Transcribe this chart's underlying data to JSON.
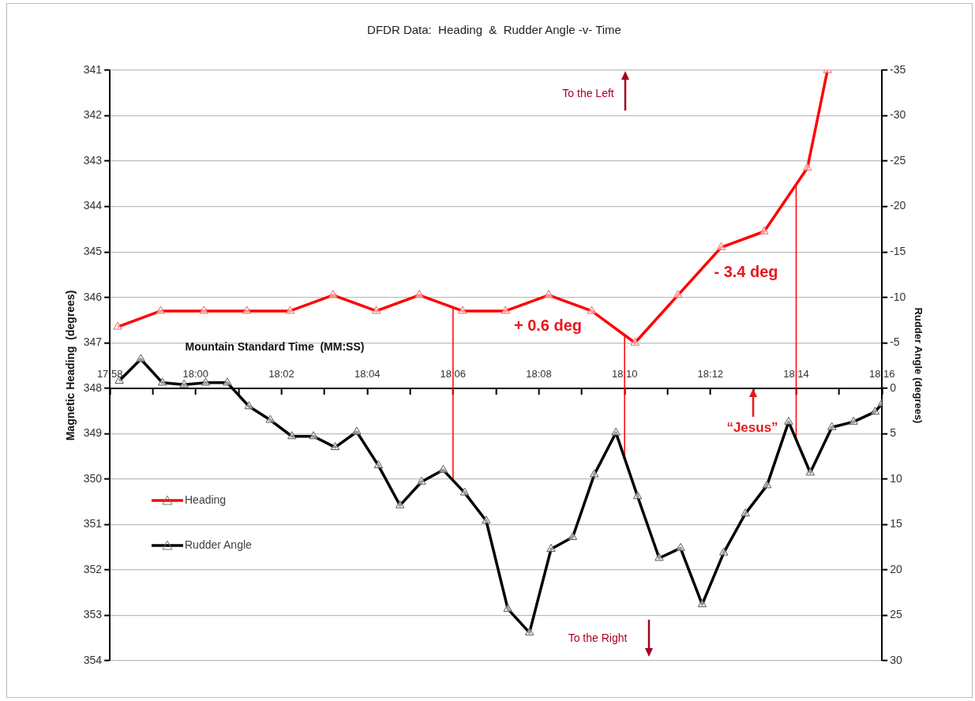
{
  "chart_data": {
    "type": "line",
    "title": "DFDR Data:  Heading  &  Rudder Angle -v- Time",
    "xlabel": "Mountain Standard Time  (MM:SS)",
    "ylabel": "Magnetic Heading  (degrees)",
    "y2label": "Rudder Angle (degrees)",
    "series": [
      {
        "name": "Heading",
        "color": "#ff0000",
        "axis": "y",
        "x": [
          17.9697,
          17.9864,
          18.0032,
          18.0199,
          18.0367,
          18.0534,
          18.0702,
          18.0869,
          18.1037,
          18.1204,
          18.1372,
          18.1539,
          18.1707,
          18.1874,
          18.2042,
          18.2209,
          18.2377,
          18.2455
        ],
        "values": [
          346.65,
          346.3,
          346.3,
          346.3,
          346.3,
          345.95,
          346.3,
          345.95,
          346.3,
          346.3,
          345.95,
          346.3,
          347.0,
          345.95,
          344.9,
          344.55,
          343.15,
          341
        ]
      },
      {
        "name": "Rudder Angle",
        "color": "#000000",
        "axis": "y2",
        "x": [
          17.9703,
          17.9787,
          17.9871,
          17.9955,
          18.0039,
          18.0123,
          18.0207,
          18.029,
          18.0374,
          18.0458,
          18.0542,
          18.0626,
          18.071,
          18.0794,
          18.0878,
          18.0962,
          18.1045,
          18.1129,
          18.1213,
          18.1297,
          18.1381,
          18.1465,
          18.1549,
          18.1633,
          18.1717,
          18.1801,
          18.1884,
          18.1968,
          18.2052,
          18.2136,
          18.222,
          18.2304,
          18.2388,
          18.2472,
          18.2556,
          18.264,
          18.26667
        ],
        "values": [
          -0.8,
          -3.2,
          -0.6,
          -0.4,
          -0.6,
          -0.6,
          2.0,
          3.5,
          5.3,
          5.3,
          6.5,
          4.8,
          8.5,
          12.9,
          10.3,
          9.0,
          11.5,
          14.6,
          24.3,
          26.9,
          17.7,
          16.4,
          9.5,
          4.9,
          11.9,
          18.7,
          17.6,
          23.8,
          18.1,
          13.8,
          10.7,
          3.7,
          9.3,
          4.3,
          3.7,
          2.6,
          1.7
        ]
      }
    ],
    "xlim": [
      17.96667,
      18.26667
    ],
    "xticks": [
      {
        "value": 17.96667,
        "label": "17:58"
      },
      {
        "value": 17.98333,
        "label": null
      },
      {
        "value": 18,
        "label": "18:00"
      },
      {
        "value": 18.01667,
        "label": null
      },
      {
        "value": 18.03333,
        "label": "18:02"
      },
      {
        "value": 18.05,
        "label": null
      },
      {
        "value": 18.06667,
        "label": "18:04"
      },
      {
        "value": 18.08333,
        "label": null
      },
      {
        "value": 18.1,
        "label": "18:06"
      },
      {
        "value": 18.11667,
        "label": null
      },
      {
        "value": 18.13333,
        "label": "18:08"
      },
      {
        "value": 18.15,
        "label": null
      },
      {
        "value": 18.16667,
        "label": "18:10"
      },
      {
        "value": 18.18333,
        "label": null
      },
      {
        "value": 18.2,
        "label": "18:12"
      },
      {
        "value": 18.21667,
        "label": null
      },
      {
        "value": 18.23333,
        "label": "18:14"
      },
      {
        "value": 18.25,
        "label": null
      },
      {
        "value": 18.26667,
        "label": "18:16"
      }
    ],
    "ylim": [
      354,
      341
    ],
    "yticks": [
      341,
      342,
      343,
      344,
      345,
      346,
      347,
      348,
      349,
      350,
      351,
      352,
      353,
      354
    ],
    "y2lim": [
      30,
      -35
    ],
    "y2ticks": [
      -35,
      -30,
      -25,
      -20,
      -15,
      -10,
      -5,
      0,
      5,
      10,
      15,
      20,
      25,
      30
    ],
    "ref_lines": [
      {
        "axis": "x",
        "value": 18.1,
        "color": "#ff0000"
      },
      {
        "axis": "x",
        "value": 18.16667,
        "color": "#ff0000"
      },
      {
        "axis": "x",
        "value": 18.23333,
        "color": "#ff0000"
      }
    ],
    "annotations": [
      "To the Left",
      "To the Right",
      "+ 0.6 deg",
      "- 3.4 deg",
      "“Jesus”"
    ],
    "grid": "y",
    "legend": "left",
    "marker": "triangle"
  }
}
